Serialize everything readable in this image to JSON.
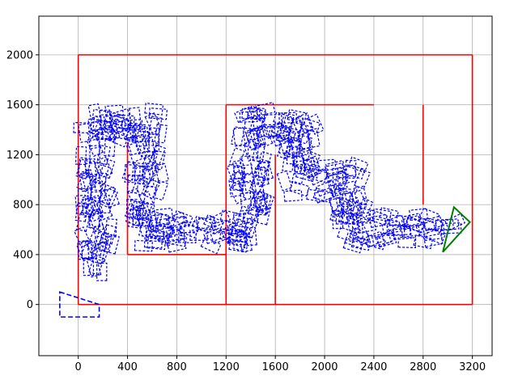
{
  "chart_data": {
    "type": "line",
    "title": "",
    "xlabel": "",
    "ylabel": "",
    "xlim": [
      -320,
      3360
    ],
    "ylim": [
      -410,
      2310
    ],
    "xticks": [
      0,
      400,
      800,
      1200,
      1600,
      2000,
      2400,
      2800,
      3200
    ],
    "yticks": [
      0,
      400,
      800,
      1200,
      1600,
      2000
    ],
    "xtick_labels": [
      "0",
      "400",
      "800",
      "1200",
      "1600",
      "2000",
      "2400",
      "2800",
      "3200"
    ],
    "ytick_labels": [
      "0",
      "400",
      "800",
      "1200",
      "1600",
      "2000"
    ],
    "grid": true,
    "colors": {
      "walls": "#ff0000",
      "trajectory": "#0000ff",
      "goal": "#008000",
      "grid": "#b0b0b0"
    },
    "series": [
      {
        "role": "walls",
        "color": "#ff0000",
        "segments": [
          [
            [
              0,
              0
            ],
            [
              3200,
              0
            ]
          ],
          [
            [
              3200,
              0
            ],
            [
              3200,
              2000
            ]
          ],
          [
            [
              3200,
              2000
            ],
            [
              0,
              2000
            ]
          ],
          [
            [
              0,
              2000
            ],
            [
              0,
              0
            ]
          ],
          [
            [
              400,
              400
            ],
            [
              400,
              1300
            ]
          ],
          [
            [
              400,
              400
            ],
            [
              1200,
              400
            ]
          ],
          [
            [
              1200,
              0
            ],
            [
              1200,
              1600
            ]
          ],
          [
            [
              1200,
              1600
            ],
            [
              2400,
              1600
            ]
          ],
          [
            [
              1600,
              0
            ],
            [
              1600,
              1200
            ]
          ],
          [
            [
              2800,
              800
            ],
            [
              2800,
              1600
            ]
          ]
        ]
      },
      {
        "role": "trajectory",
        "color": "#0000ff",
        "path": [
          [
            150,
            300
          ],
          [
            150,
            1450
          ],
          [
            550,
            1450
          ],
          [
            550,
            600
          ],
          [
            1400,
            600
          ],
          [
            1400,
            1450
          ],
          [
            1800,
            1450
          ],
          [
            1800,
            1000
          ],
          [
            2200,
            1000
          ],
          [
            2200,
            600
          ],
          [
            3000,
            600
          ]
        ],
        "start_marker": [
          [
            -150,
            100
          ],
          [
            170,
            0
          ],
          [
            170,
            -100
          ],
          [
            -150,
            -100
          ]
        ],
        "goal_marker": [
          [
            2960,
            420
          ],
          [
            3050,
            780
          ],
          [
            3180,
            660
          ]
        ]
      }
    ]
  }
}
